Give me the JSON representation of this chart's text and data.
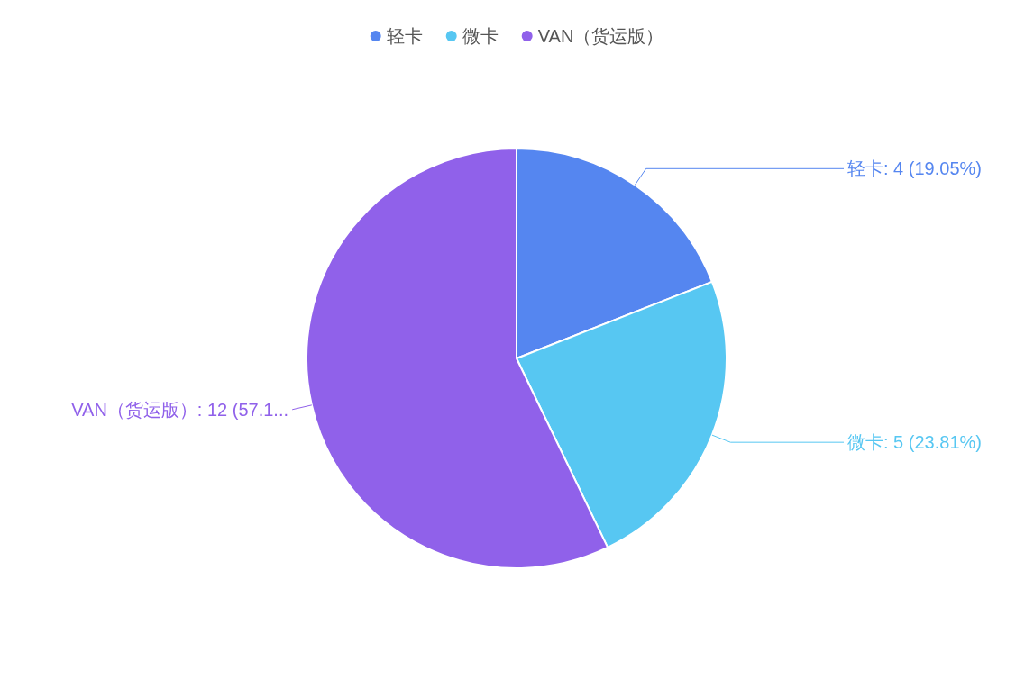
{
  "chart_data": {
    "type": "pie",
    "categories": [
      "轻卡",
      "微卡",
      "VAN（货运版）"
    ],
    "values": [
      4,
      5,
      12
    ],
    "colors": [
      "#5586f0",
      "#57c7f2",
      "#9061ea"
    ],
    "value_labels": [
      ": 4 (19.05%)",
      ": 5 (23.81%)",
      ": 12 (57.1..."
    ],
    "legend": "top"
  }
}
